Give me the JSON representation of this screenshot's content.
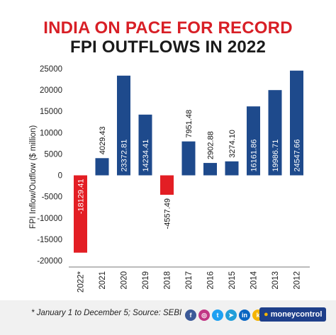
{
  "title": {
    "line1": "INDIA ON PACE FOR RECORD",
    "line2": "FPI OUTFLOWS IN 2022"
  },
  "chart_data": {
    "type": "bar",
    "categories": [
      "2022*",
      "2021",
      "2020",
      "2019",
      "2018",
      "2017",
      "2016",
      "2015",
      "2014",
      "2013",
      "2012"
    ],
    "values": [
      -18129.41,
      4029.43,
      23372.81,
      14234.41,
      -4557.49,
      7951.48,
      2902.88,
      3274.1,
      16161.86,
      19986.71,
      24547.66
    ],
    "data_labels": [
      "-18129.41",
      "4029.43",
      "23372.81",
      "14234.41",
      "-4557.49",
      "7951.48",
      "2902.88",
      "3274.10",
      "16161.86",
      "19986.71",
      "24547.66"
    ],
    "ylabel": "FPI Inflow/Outflow ($ million)",
    "ylim": [
      -20000,
      25000
    ],
    "yticks": [
      "25000",
      "20000",
      "15000",
      "10000",
      "5000",
      "0",
      "-5000",
      "-10000",
      "-15000",
      "-20000"
    ],
    "ytick_values": [
      25000,
      20000,
      15000,
      10000,
      5000,
      0,
      -5000,
      -10000,
      -15000,
      -20000
    ],
    "colors": {
      "positive": "#1e4a8c",
      "negative": "#e31e24"
    },
    "grid": false,
    "legend": "none"
  },
  "footer": {
    "note": "* January 1 to December 5; Source: SEBI",
    "brand_name": "moneycontrol",
    "social_icons": [
      {
        "name": "facebook-icon",
        "glyph": "f",
        "color": "#3b5998"
      },
      {
        "name": "instagram-icon",
        "glyph": "◎",
        "color": "#c13584"
      },
      {
        "name": "twitter-icon",
        "glyph": "t",
        "color": "#1da1f2"
      },
      {
        "name": "telegram-icon",
        "glyph": "➤",
        "color": "#229ed9"
      },
      {
        "name": "linkedin-icon",
        "glyph": "in",
        "color": "#0a66c2"
      },
      {
        "name": "koo-icon",
        "glyph": "k",
        "color": "#f5b400"
      }
    ]
  }
}
